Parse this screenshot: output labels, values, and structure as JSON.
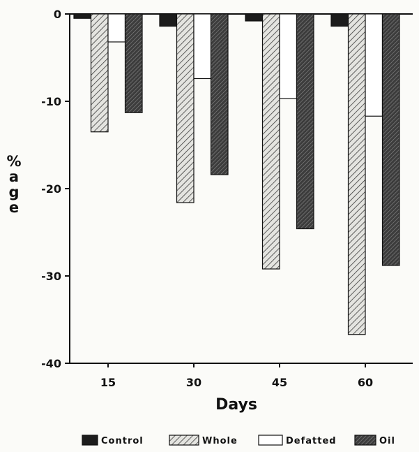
{
  "chart_data": {
    "type": "bar",
    "title": "",
    "xlabel": "Days",
    "ylabel": "%age",
    "categories": [
      "15",
      "30",
      "45",
      "60"
    ],
    "series": [
      {
        "name": "Control",
        "values": [
          -0.5,
          -1.4,
          -0.8,
          -1.4
        ],
        "color": "#1e1e1e",
        "pattern": "solid-dark"
      },
      {
        "name": "Whole",
        "values": [
          -13.5,
          -21.6,
          -29.2,
          -36.7
        ],
        "color": "#d8d8d4",
        "pattern": "diagonal-hatch"
      },
      {
        "name": "Defatted",
        "values": [
          -3.2,
          -7.4,
          -9.7,
          -11.7
        ],
        "color": "#ffffff",
        "pattern": "open"
      },
      {
        "name": "Oil",
        "values": [
          -11.3,
          -18.4,
          -24.6,
          -28.8
        ],
        "color": "#4a4a4a",
        "pattern": "dense-hatch"
      }
    ],
    "ylim": [
      -40,
      0
    ],
    "yticks": [
      0,
      -10,
      -20,
      -30,
      -40
    ],
    "ytick_labels": [
      "0",
      "-10",
      "-20",
      "-30",
      "-40"
    ],
    "grid": false,
    "legend_position": "bottom"
  }
}
